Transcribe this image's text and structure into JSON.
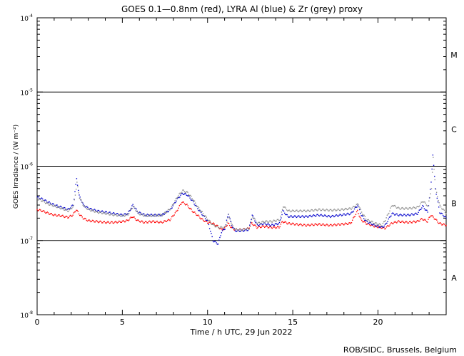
{
  "chart_data": {
    "type": "scatter",
    "title": "GOES 0.1—0.8nm (red), LYRA Al (blue) & Zr (grey) proxy",
    "xlabel": "Time / h UTC, 29 Jun 2022",
    "ylabel": "GOES Irradiance / (W m⁻²)",
    "yscale": "log",
    "xlim": [
      0,
      24
    ],
    "ylim": [
      1e-08,
      0.0001
    ],
    "x_ticks": [
      0,
      5,
      10,
      15,
      20
    ],
    "x_tick_labels": [
      "0",
      "5",
      "10",
      "15",
      "20"
    ],
    "y_ticks": [
      1e-08,
      1e-07,
      1e-06,
      1e-05,
      0.0001
    ],
    "y_tick_labels": [
      {
        "base": "10",
        "exp": "-8"
      },
      {
        "base": "10",
        "exp": "-7"
      },
      {
        "base": "10",
        "exp": "-6"
      },
      {
        "base": "10",
        "exp": "-5"
      },
      {
        "base": "10",
        "exp": "-4"
      }
    ],
    "flare_class_lines": [
      1e-07,
      1e-06,
      1e-05
    ],
    "flare_classes": [
      {
        "label": "A",
        "y": 3.16e-08
      },
      {
        "label": "B",
        "y": 3.16e-07
      },
      {
        "label": "C",
        "y": 3.16e-06
      },
      {
        "label": "M",
        "y": 3.16e-05
      }
    ],
    "series": [
      {
        "name": "GOES 0.1—0.8nm",
        "color": "#ff0000",
        "points": [
          [
            0,
            2.6e-07
          ],
          [
            0.3,
            2.5e-07
          ],
          [
            0.6,
            2.35e-07
          ],
          [
            1,
            2.2e-07
          ],
          [
            1.4,
            2.15e-07
          ],
          [
            1.8,
            2.05e-07
          ],
          [
            2.1,
            2.2e-07
          ],
          [
            2.3,
            2.6e-07
          ],
          [
            2.45,
            2.3e-07
          ],
          [
            2.7,
            2e-07
          ],
          [
            3,
            1.85e-07
          ],
          [
            3.5,
            1.8e-07
          ],
          [
            4,
            1.75e-07
          ],
          [
            4.5,
            1.75e-07
          ],
          [
            5,
            1.8e-07
          ],
          [
            5.3,
            1.85e-07
          ],
          [
            5.6,
            2.1e-07
          ],
          [
            5.9,
            1.85e-07
          ],
          [
            6.3,
            1.75e-07
          ],
          [
            6.8,
            1.8e-07
          ],
          [
            7.3,
            1.75e-07
          ],
          [
            7.8,
            1.9e-07
          ],
          [
            8.2,
            2.5e-07
          ],
          [
            8.5,
            3.3e-07
          ],
          [
            8.8,
            3e-07
          ],
          [
            9.1,
            2.5e-07
          ],
          [
            9.4,
            2.2e-07
          ],
          [
            9.7,
            1.9e-07
          ],
          [
            10,
            1.75e-07
          ],
          [
            10.3,
            1.7e-07
          ],
          [
            10.6,
            1.55e-07
          ],
          [
            10.8,
            1.4e-07
          ],
          [
            11,
            1.45e-07
          ],
          [
            11.2,
            1.7e-07
          ],
          [
            11.4,
            1.5e-07
          ],
          [
            11.6,
            1.4e-07
          ],
          [
            12,
            1.4e-07
          ],
          [
            12.4,
            1.45e-07
          ],
          [
            12.6,
            1.7e-07
          ],
          [
            12.9,
            1.5e-07
          ],
          [
            13.3,
            1.55e-07
          ],
          [
            13.7,
            1.5e-07
          ],
          [
            14.2,
            1.5e-07
          ],
          [
            14.4,
            1.8e-07
          ],
          [
            14.7,
            1.7e-07
          ],
          [
            15.2,
            1.65e-07
          ],
          [
            15.8,
            1.6e-07
          ],
          [
            16.5,
            1.65e-07
          ],
          [
            17.2,
            1.6e-07
          ],
          [
            17.8,
            1.65e-07
          ],
          [
            18.4,
            1.7e-07
          ],
          [
            18.8,
            2.5e-07
          ],
          [
            19,
            1.9e-07
          ],
          [
            19.3,
            1.7e-07
          ],
          [
            19.8,
            1.55e-07
          ],
          [
            20.2,
            1.5e-07
          ],
          [
            20.4,
            1.45e-07
          ],
          [
            20.8,
            1.7e-07
          ],
          [
            21.2,
            1.8e-07
          ],
          [
            21.8,
            1.75e-07
          ],
          [
            22.3,
            1.8e-07
          ],
          [
            22.6,
            1.95e-07
          ],
          [
            22.9,
            1.8e-07
          ],
          [
            23.1,
            2.2e-07
          ],
          [
            23.3,
            2e-07
          ],
          [
            23.6,
            1.7e-07
          ],
          [
            24,
            1.6e-07
          ]
        ]
      },
      {
        "name": "LYRA Al proxy",
        "color": "#0000cc",
        "points": [
          [
            0,
            3.8e-07
          ],
          [
            0.3,
            3.6e-07
          ],
          [
            0.6,
            3.3e-07
          ],
          [
            1,
            3e-07
          ],
          [
            1.4,
            2.8e-07
          ],
          [
            1.8,
            2.6e-07
          ],
          [
            2.1,
            3e-07
          ],
          [
            2.3,
            6.8e-07
          ],
          [
            2.45,
            4e-07
          ],
          [
            2.7,
            3e-07
          ],
          [
            3,
            2.7e-07
          ],
          [
            3.5,
            2.5e-07
          ],
          [
            4,
            2.4e-07
          ],
          [
            4.5,
            2.3e-07
          ],
          [
            5,
            2.2e-07
          ],
          [
            5.3,
            2.3e-07
          ],
          [
            5.6,
            3e-07
          ],
          [
            5.9,
            2.4e-07
          ],
          [
            6.3,
            2.2e-07
          ],
          [
            6.8,
            2.2e-07
          ],
          [
            7.3,
            2.2e-07
          ],
          [
            7.8,
            2.6e-07
          ],
          [
            8.2,
            3.6e-07
          ],
          [
            8.5,
            4.3e-07
          ],
          [
            8.8,
            4.1e-07
          ],
          [
            9.1,
            3.4e-07
          ],
          [
            9.4,
            2.7e-07
          ],
          [
            9.7,
            2.2e-07
          ],
          [
            10,
            1.8e-07
          ],
          [
            10.3,
            1e-07
          ],
          [
            10.6,
            9e-08
          ],
          [
            10.8,
            1.3e-07
          ],
          [
            11,
            1.45e-07
          ],
          [
            11.2,
            2.3e-07
          ],
          [
            11.4,
            1.6e-07
          ],
          [
            11.6,
            1.35e-07
          ],
          [
            12,
            1.35e-07
          ],
          [
            12.4,
            1.4e-07
          ],
          [
            12.6,
            2.2e-07
          ],
          [
            12.9,
            1.6e-07
          ],
          [
            13.3,
            1.7e-07
          ],
          [
            13.7,
            1.6e-07
          ],
          [
            14.2,
            1.7e-07
          ],
          [
            14.4,
            2.5e-07
          ],
          [
            14.7,
            2.1e-07
          ],
          [
            15.2,
            2.1e-07
          ],
          [
            15.8,
            2.1e-07
          ],
          [
            16.5,
            2.2e-07
          ],
          [
            17.2,
            2.1e-07
          ],
          [
            17.8,
            2.2e-07
          ],
          [
            18.4,
            2.3e-07
          ],
          [
            18.8,
            3e-07
          ],
          [
            19,
            2.2e-07
          ],
          [
            19.3,
            1.8e-07
          ],
          [
            19.8,
            1.6e-07
          ],
          [
            20.2,
            1.5e-07
          ],
          [
            20.4,
            1.6e-07
          ],
          [
            20.8,
            2.3e-07
          ],
          [
            21.2,
            2.2e-07
          ],
          [
            21.8,
            2.2e-07
          ],
          [
            22.3,
            2.3e-07
          ],
          [
            22.6,
            2.9e-07
          ],
          [
            22.9,
            2.4e-07
          ],
          [
            23.1,
            6e-07
          ],
          [
            23.2,
            1.45e-06
          ],
          [
            23.35,
            5e-07
          ],
          [
            23.6,
            2.4e-07
          ],
          [
            24,
            2e-07
          ]
        ]
      },
      {
        "name": "LYRA Zr proxy",
        "color": "#8c8c8c",
        "points": [
          [
            0,
            3.6e-07
          ],
          [
            0.3,
            3.4e-07
          ],
          [
            0.6,
            3.1e-07
          ],
          [
            1,
            2.9e-07
          ],
          [
            1.4,
            2.7e-07
          ],
          [
            1.8,
            2.5e-07
          ],
          [
            2.1,
            2.9e-07
          ],
          [
            2.3,
            6e-07
          ],
          [
            2.45,
            3.8e-07
          ],
          [
            2.7,
            2.9e-07
          ],
          [
            3,
            2.6e-07
          ],
          [
            3.5,
            2.4e-07
          ],
          [
            4,
            2.3e-07
          ],
          [
            4.5,
            2.2e-07
          ],
          [
            5,
            2.15e-07
          ],
          [
            5.3,
            2.25e-07
          ],
          [
            5.6,
            2.9e-07
          ],
          [
            5.9,
            2.3e-07
          ],
          [
            6.3,
            2.15e-07
          ],
          [
            6.8,
            2.15e-07
          ],
          [
            7.3,
            2.2e-07
          ],
          [
            7.8,
            2.7e-07
          ],
          [
            8.2,
            3.9e-07
          ],
          [
            8.5,
            4.7e-07
          ],
          [
            8.8,
            4.4e-07
          ],
          [
            9.1,
            3.6e-07
          ],
          [
            9.4,
            2.8e-07
          ],
          [
            9.7,
            2.3e-07
          ],
          [
            10,
            1.9e-07
          ],
          [
            10.3,
            1.6e-07
          ],
          [
            10.6,
            1.5e-07
          ],
          [
            10.8,
            1.5e-07
          ],
          [
            11,
            1.5e-07
          ],
          [
            11.2,
            2.2e-07
          ],
          [
            11.4,
            1.6e-07
          ],
          [
            11.6,
            1.4e-07
          ],
          [
            12,
            1.4e-07
          ],
          [
            12.4,
            1.45e-07
          ],
          [
            12.6,
            2.1e-07
          ],
          [
            12.9,
            1.7e-07
          ],
          [
            13.3,
            1.8e-07
          ],
          [
            13.7,
            1.8e-07
          ],
          [
            14.2,
            1.9e-07
          ],
          [
            14.4,
            2.9e-07
          ],
          [
            14.7,
            2.5e-07
          ],
          [
            15.2,
            2.5e-07
          ],
          [
            15.8,
            2.5e-07
          ],
          [
            16.5,
            2.6e-07
          ],
          [
            17.2,
            2.55e-07
          ],
          [
            17.8,
            2.6e-07
          ],
          [
            18.4,
            2.7e-07
          ],
          [
            18.8,
            3.1e-07
          ],
          [
            19,
            2.4e-07
          ],
          [
            19.3,
            1.9e-07
          ],
          [
            19.8,
            1.7e-07
          ],
          [
            20.2,
            1.6e-07
          ],
          [
            20.4,
            1.9e-07
          ],
          [
            20.8,
            3e-07
          ],
          [
            21.2,
            2.7e-07
          ],
          [
            21.8,
            2.7e-07
          ],
          [
            22.3,
            2.8e-07
          ],
          [
            22.6,
            3.4e-07
          ],
          [
            22.9,
            2.9e-07
          ],
          [
            23.1,
            5e-07
          ],
          [
            23.2,
            1.3e-06
          ],
          [
            23.35,
            4.8e-07
          ],
          [
            23.6,
            2.9e-07
          ],
          [
            24,
            2.3e-07
          ]
        ]
      }
    ]
  },
  "footer": "ROB/SIDC, Brussels, Belgium"
}
